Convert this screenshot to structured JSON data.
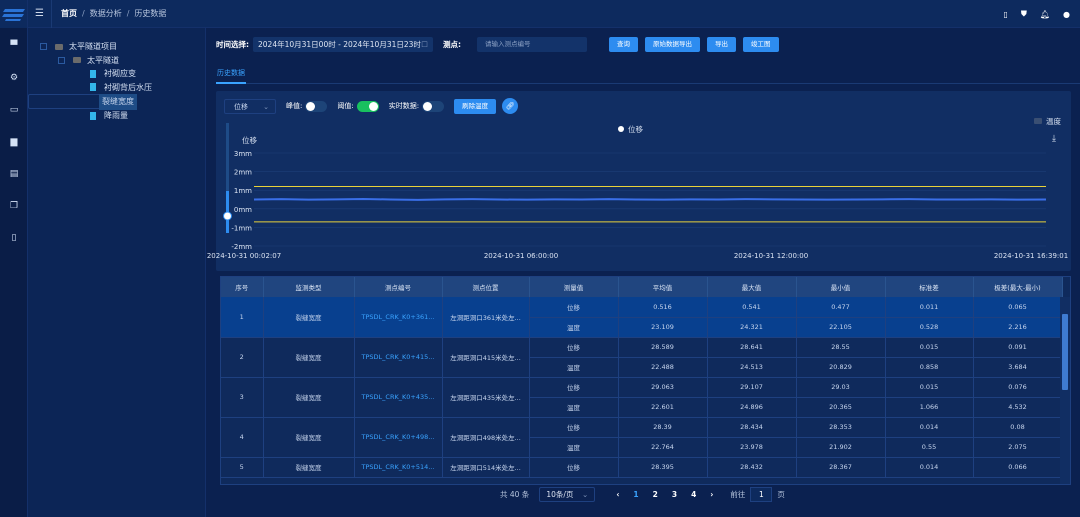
{
  "header": {
    "breadcrumb": [
      "首页",
      "数据分析",
      "历史数据"
    ]
  },
  "rail_icons": [
    "monitor-icon",
    "settings-icon",
    "folder-icon",
    "book-icon",
    "list-icon",
    "copy-icon",
    "document-icon"
  ],
  "tree": [
    {
      "label": "太平隧道项目",
      "level": 0,
      "type": "folder"
    },
    {
      "label": "太平隧道",
      "level": 1,
      "type": "folder"
    },
    {
      "label": "衬砌应变",
      "level": 2,
      "type": "file"
    },
    {
      "label": "衬砌背后水压",
      "level": 2,
      "type": "file"
    },
    {
      "label": "裂缝宽度",
      "level": 2,
      "type": "file",
      "selected": true
    },
    {
      "label": "降雨量",
      "level": 2,
      "type": "file"
    }
  ],
  "filters": {
    "time_label": "时间选择:",
    "time_value": "2024年10月31日00时 - 2024年10月31日23时",
    "point_label": "测点:",
    "point_placeholder": "请输入测点编号",
    "buttons": [
      "查询",
      "原始数据导出",
      "导出",
      "竣工图"
    ]
  },
  "tabs": [
    "历史数据"
  ],
  "controls": {
    "select_value": "位移",
    "toggles": [
      {
        "label": "峰值:",
        "on": false
      },
      {
        "label": "阈值:",
        "on": true
      },
      {
        "label": "实时数据:",
        "on": false
      }
    ],
    "clear_button": "刷除温度"
  },
  "chart_data": {
    "type": "line",
    "ylabel": "位移",
    "ylim": [
      -2,
      3
    ],
    "yticks": [
      "3mm",
      "2mm",
      "1mm",
      "0mm",
      "-1mm",
      "-2mm"
    ],
    "xticks": [
      "2024-10-31 00:02:07",
      "2024-10-31 06:00:00",
      "2024-10-31 12:00:00",
      "2024-10-31 16:39:01"
    ],
    "legend": [
      "位移"
    ],
    "legend_right": "温度",
    "grid": true,
    "series": [
      {
        "name": "位移",
        "color": "#3a6fe8",
        "values": [
          0.5,
          0.52,
          0.49,
          0.51,
          0.53,
          0.5,
          0.48,
          0.51,
          0.52,
          0.5,
          0.49,
          0.51,
          0.5,
          0.52,
          0.5,
          0.49,
          0.51,
          0.5,
          0.52,
          0.51,
          0.5,
          0.49,
          0.5,
          0.51,
          0.52,
          0.5,
          0.5,
          0.51,
          0.49,
          0.5
        ]
      }
    ],
    "thresholds": [
      {
        "value": 1.2,
        "color": "#e8d23a"
      },
      {
        "value": -0.7,
        "color": "#e8d23a"
      }
    ]
  },
  "table": {
    "headers": [
      "序号",
      "监测类型",
      "测点编号",
      "测点位置",
      "测量值",
      "平均值",
      "最大值",
      "最小值",
      "标准差",
      "极差(最大-最小)"
    ],
    "rows": [
      {
        "no": "1",
        "type": "裂缝宽度",
        "code": "TPSDL_CRK_K0+361...",
        "loc": "左洞距洞口361米处左...",
        "sub": [
          [
            "位移",
            "0.516",
            "0.541",
            "0.477",
            "0.011",
            "0.065"
          ],
          [
            "温度",
            "23.109",
            "24.321",
            "22.105",
            "0.528",
            "2.216"
          ]
        ]
      },
      {
        "no": "2",
        "type": "裂缝宽度",
        "code": "TPSDL_CRK_K0+415...",
        "loc": "左洞距洞口415米处左...",
        "sub": [
          [
            "位移",
            "28.589",
            "28.641",
            "28.55",
            "0.015",
            "0.091"
          ],
          [
            "温度",
            "22.488",
            "24.513",
            "20.829",
            "0.858",
            "3.684"
          ]
        ]
      },
      {
        "no": "3",
        "type": "裂缝宽度",
        "code": "TPSDL_CRK_K0+435...",
        "loc": "左洞距洞口435米处左...",
        "sub": [
          [
            "位移",
            "29.063",
            "29.107",
            "29.03",
            "0.015",
            "0.076"
          ],
          [
            "温度",
            "22.601",
            "24.896",
            "20.365",
            "1.066",
            "4.532"
          ]
        ]
      },
      {
        "no": "4",
        "type": "裂缝宽度",
        "code": "TPSDL_CRK_K0+498...",
        "loc": "左洞距洞口498米处左...",
        "sub": [
          [
            "位移",
            "28.39",
            "28.434",
            "28.353",
            "0.014",
            "0.08"
          ],
          [
            "温度",
            "22.764",
            "23.978",
            "21.902",
            "0.55",
            "2.075"
          ]
        ]
      },
      {
        "no": "5",
        "type": "裂缝宽度",
        "code": "TPSDL_CRK_K0+514...",
        "loc": "左洞距洞口514米处左...",
        "sub": [
          [
            "位移",
            "28.395",
            "28.432",
            "28.367",
            "0.014",
            "0.066"
          ]
        ]
      }
    ]
  },
  "pagination": {
    "total": "共 40 条",
    "page_size": "10条/页",
    "pages": [
      "1",
      "2",
      "3",
      "4"
    ],
    "current": "1",
    "goto_label": "前往",
    "goto_value": "1",
    "page_suffix": "页"
  }
}
